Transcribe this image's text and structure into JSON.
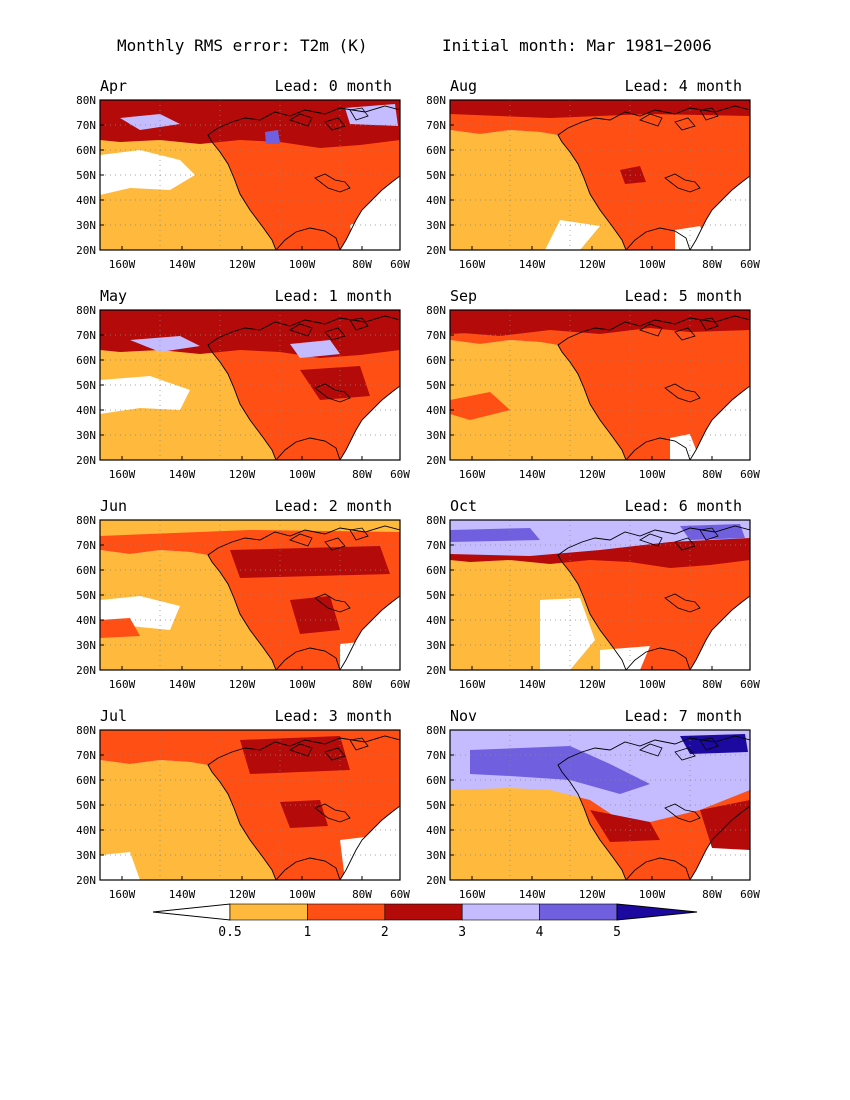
{
  "figure": {
    "title_left": "Monthly RMS error: T2m (K)",
    "title_right": "Initial month: Mar 1981−2006"
  },
  "axes": {
    "lat_labels": [
      "80N",
      "70N",
      "60N",
      "50N",
      "40N",
      "30N",
      "20N"
    ],
    "lon_labels": [
      "160W",
      "140W",
      "120W",
      "100W",
      "80W",
      "60W"
    ]
  },
  "panels": [
    {
      "month": "Apr",
      "lead": "Lead: 0 month"
    },
    {
      "month": "Aug",
      "lead": "Lead: 4 month"
    },
    {
      "month": "May",
      "lead": "Lead: 1 month"
    },
    {
      "month": "Sep",
      "lead": "Lead: 5 month"
    },
    {
      "month": "Jun",
      "lead": "Lead: 2 month"
    },
    {
      "month": "Oct",
      "lead": "Lead: 6 month"
    },
    {
      "month": "Jul",
      "lead": "Lead: 3 month"
    },
    {
      "month": "Nov",
      "lead": "Lead: 7 month"
    }
  ],
  "colorbar": {
    "labels": [
      "0.5",
      "1",
      "2",
      "3",
      "4",
      "5"
    ],
    "colors": [
      "#ffffff",
      "#ffb93c",
      "#ff4f14",
      "#b40a0a",
      "#c4bcff",
      "#7060e0",
      "#1c0aa0"
    ]
  }
}
